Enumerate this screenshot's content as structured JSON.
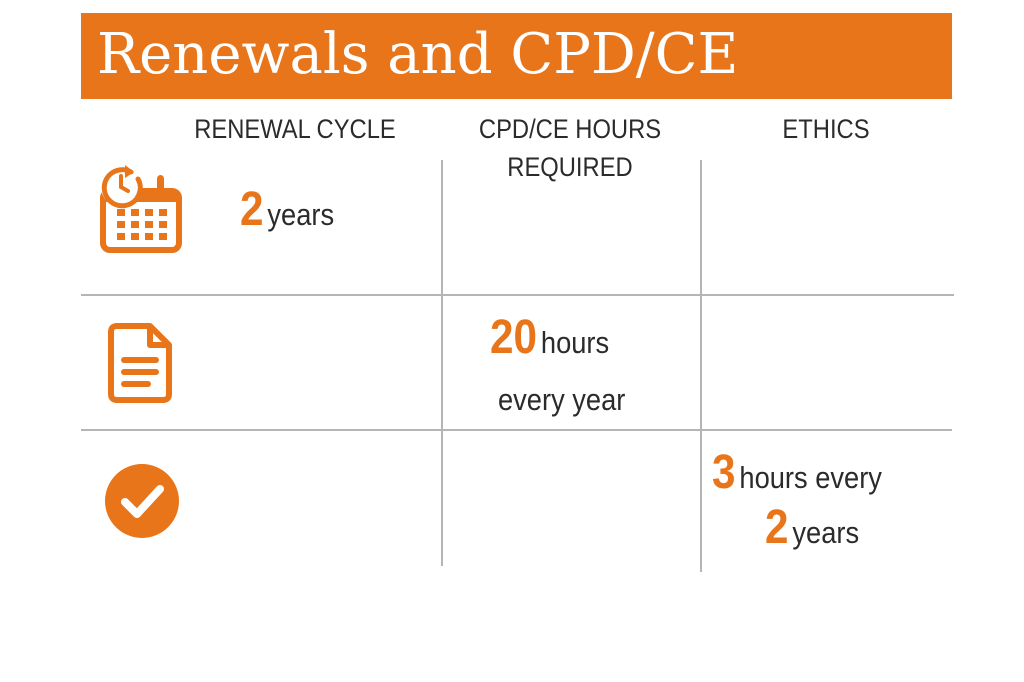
{
  "title": "Renewals and CPD/CE",
  "columns": {
    "renewal_cycle": "RENEWAL CYCLE",
    "cpd_line1": "CPD/CE HOURS",
    "cpd_line2": "REQUIRED",
    "ethics": "ETHICS"
  },
  "rows": [
    {
      "icon": "calendar-clock-icon",
      "value": "2",
      "unit": "years"
    },
    {
      "icon": "document-icon",
      "value": "20",
      "unit": "hours",
      "unit2": "every year"
    },
    {
      "icon": "checkmark-circle-icon",
      "value": "3",
      "unit": "hours every",
      "value2": "2",
      "unit2": "years"
    }
  ],
  "colors": {
    "accent": "#e8751a",
    "text": "#2b2b2b",
    "grid": "#b5b5b5"
  }
}
